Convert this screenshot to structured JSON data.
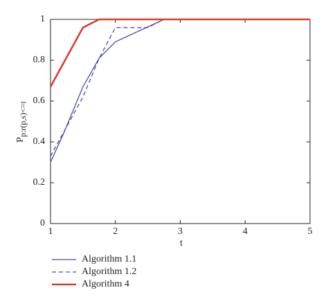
{
  "chart_data": {
    "type": "line",
    "ylabel": {
      "main": "P",
      "sub": "p:r(p,s)<=t"
    },
    "xlabel": "t",
    "xlim": [
      1,
      5
    ],
    "xticks": [
      1,
      2,
      3,
      4,
      5
    ],
    "ylim": [
      0,
      1
    ],
    "yticks": [
      0,
      0.2,
      0.4,
      0.6,
      0.8,
      1
    ],
    "series": [
      {
        "name": "Algorithm 1.1",
        "color": "#4b4bab",
        "dash": false,
        "width": 1.3,
        "x": [
          1,
          1.2,
          1.5,
          1.75,
          2,
          2.75,
          5
        ],
        "values": [
          0.3,
          0.44,
          0.67,
          0.81,
          0.89,
          1,
          1
        ]
      },
      {
        "name": "Algorithm 1.2",
        "color": "#4b4bab",
        "dash": true,
        "width": 1.3,
        "x": [
          1,
          1.5,
          1.75,
          2,
          2.5,
          2.75,
          5
        ],
        "values": [
          0.33,
          0.62,
          0.81,
          0.96,
          0.96,
          1,
          1
        ]
      },
      {
        "name": "Algorithm 4",
        "color": "#e0392b",
        "dash": false,
        "width": 2.6,
        "x": [
          1,
          1.5,
          1.75,
          5
        ],
        "values": [
          0.67,
          0.96,
          1,
          1
        ]
      }
    ]
  }
}
